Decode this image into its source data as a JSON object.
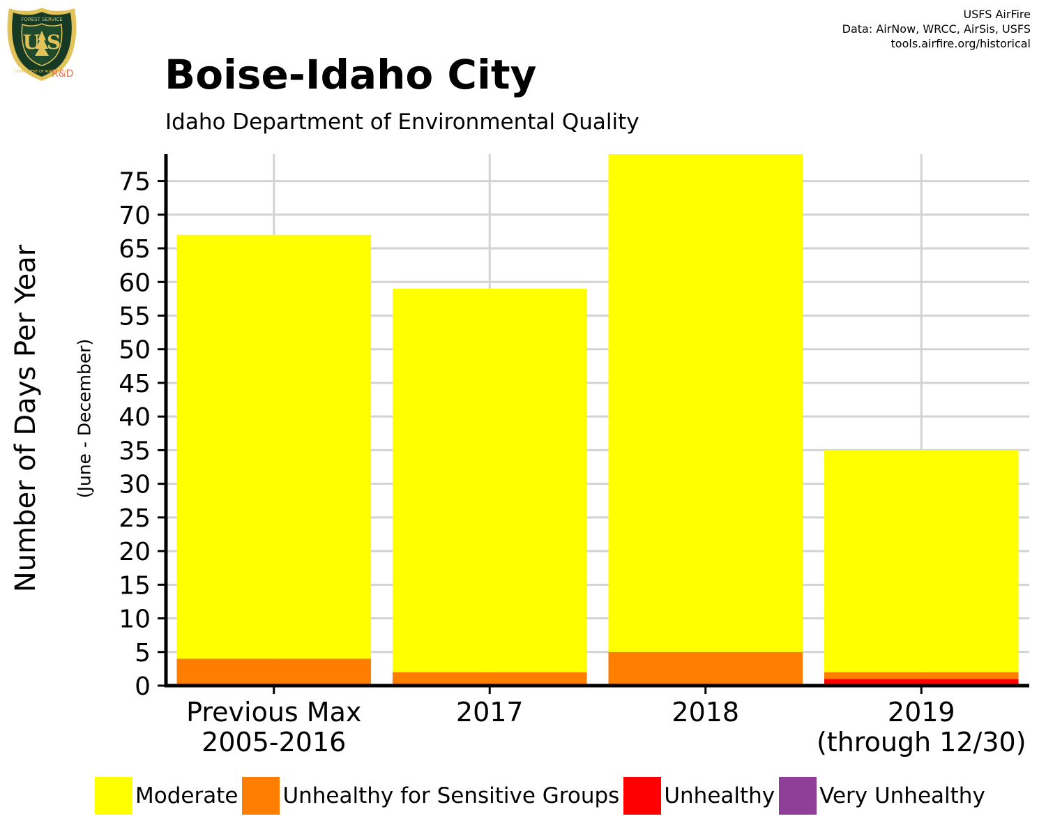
{
  "header": {
    "credits": [
      "USFS AirFire",
      "Data: AirNow, WRCC, AirSis, USFS",
      "tools.airfire.org/historical"
    ],
    "logo": {
      "text": "U S",
      "ring_top": "FOREST SERVICE",
      "ring_bottom": "DEPARTMENT OF AGRICULTURE",
      "rnd": "R&D"
    }
  },
  "chart_data": {
    "type": "bar",
    "stacked": true,
    "title": "Boise-Idaho City",
    "subtitle": "Idaho Department of Environmental Quality",
    "ylabel": "Number of Days Per Year",
    "ylabel_sub": "(June - December)",
    "xlabel": "",
    "ylim": [
      0,
      79
    ],
    "yticks": [
      0,
      5,
      10,
      15,
      20,
      25,
      30,
      35,
      40,
      45,
      50,
      55,
      60,
      65,
      70,
      75
    ],
    "grid": true,
    "legend_position": "bottom",
    "categories": [
      [
        "Previous Max",
        "2005-2016"
      ],
      [
        "2017"
      ],
      [
        "2018"
      ],
      [
        "2019",
        "(through 12/30)"
      ]
    ],
    "series": [
      {
        "name": "Moderate",
        "color": "#FFFF00",
        "values": [
          63,
          57,
          74,
          33
        ]
      },
      {
        "name": "Unhealthy for Sensitive Groups",
        "color": "#FF7E00",
        "values": [
          4,
          2,
          5,
          1
        ]
      },
      {
        "name": "Unhealthy",
        "color": "#FF0000",
        "values": [
          0,
          0,
          0,
          1
        ]
      },
      {
        "name": "Very Unhealthy",
        "color": "#8F3F97",
        "values": [
          0,
          0,
          0,
          0
        ]
      }
    ]
  }
}
